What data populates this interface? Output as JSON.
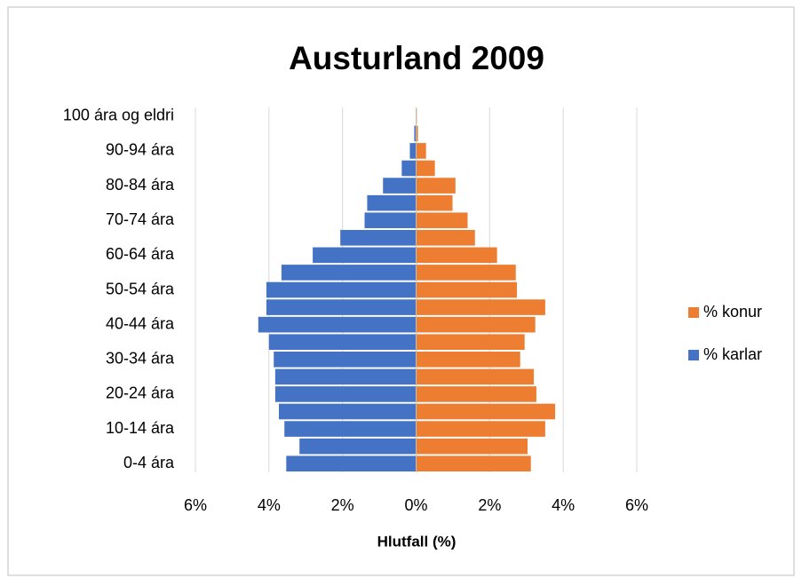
{
  "chart_data": {
    "type": "pyramid",
    "title": "Austurland 2009",
    "xlabel": "Hlutfall (%)",
    "categories": [
      "0-4 ára",
      null,
      "10-14 ára",
      null,
      "20-24 ára",
      null,
      "30-34 ára",
      null,
      "40-44 ára",
      null,
      "50-54 ára",
      null,
      "60-64 ára",
      null,
      "70-74 ára",
      null,
      "80-84 ára",
      null,
      "90-94 ára",
      null,
      "100 ára og eldri"
    ],
    "series": [
      {
        "name": "% konur",
        "color": "#ed7d31",
        "values": [
          3.12,
          3.03,
          3.51,
          3.78,
          3.27,
          3.2,
          2.83,
          2.95,
          3.24,
          3.51,
          2.74,
          2.71,
          2.2,
          1.6,
          1.4,
          0.99,
          1.07,
          0.51,
          0.27,
          0.05,
          0.02
        ]
      },
      {
        "name": "% karlar",
        "color": "#4472c4",
        "values": [
          -3.53,
          -3.17,
          -3.58,
          -3.73,
          -3.83,
          -3.83,
          -3.87,
          -4.0,
          -4.29,
          -4.07,
          -4.07,
          -3.66,
          -2.81,
          -2.06,
          -1.4,
          -1.33,
          -0.9,
          -0.39,
          -0.17,
          -0.05,
          -0.01
        ]
      }
    ],
    "xlim": [
      -6,
      6
    ],
    "xticks": [
      {
        "value": -6,
        "label": "6%"
      },
      {
        "value": -4,
        "label": "4%"
      },
      {
        "value": -2,
        "label": "2%"
      },
      {
        "value": 0,
        "label": "0%"
      },
      {
        "value": 2,
        "label": "2%"
      },
      {
        "value": 4,
        "label": "4%"
      },
      {
        "value": 6,
        "label": "6%"
      }
    ],
    "grid": true,
    "legend": "right"
  }
}
